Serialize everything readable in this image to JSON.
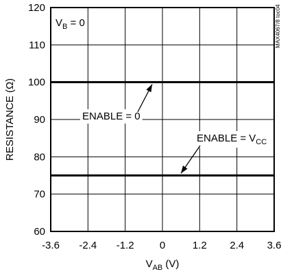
{
  "chart_data": {
    "type": "line",
    "title": "",
    "xlabel": {
      "main": "V",
      "sub": "AB",
      "unit": " (V)"
    },
    "ylabel": "RESISTANCE (Ω)",
    "xlim": [
      -3.6,
      3.6
    ],
    "ylim": [
      60,
      120
    ],
    "x_ticks": [
      "-3.6",
      "-2.4",
      "-1.2",
      "0",
      "1.2",
      "2.4",
      "3.6"
    ],
    "y_ticks": [
      "60",
      "70",
      "80",
      "90",
      "100",
      "110",
      "120"
    ],
    "grid": true,
    "series": [
      {
        "name": "ENABLE = 0",
        "x": [
          -3.6,
          3.6
        ],
        "y": [
          100,
          100
        ]
      },
      {
        "name": "ENABLE = VCC",
        "x": [
          -3.6,
          3.6
        ],
        "y": [
          75,
          75
        ]
      }
    ],
    "annotations": {
      "condition": {
        "main": "V",
        "sub": "B",
        "rest": " = 0"
      },
      "enable0": "ENABLE = 0",
      "enableVcc": {
        "main": "ENABLE = V",
        "sub": "CC"
      },
      "watermark": "MAX4067/8 toc04"
    }
  }
}
